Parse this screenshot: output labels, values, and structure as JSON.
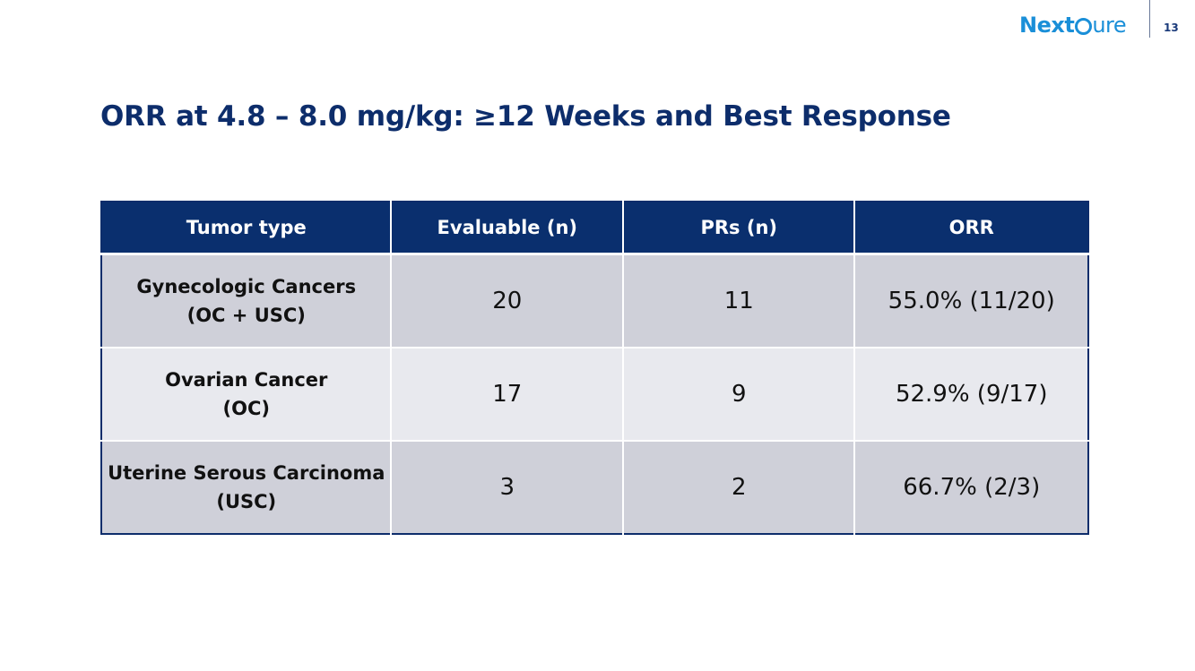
{
  "header": {
    "logo_next": "Next",
    "logo_cure": "ure",
    "page_number": "13"
  },
  "title": "ORR at 4.8 – 8.0 mg/kg: ≥12 Weeks and Best Response",
  "table": {
    "columns": [
      "Tumor type",
      "Evaluable (n)",
      "PRs (n)",
      "ORR"
    ],
    "rows": [
      {
        "tumor_line1": "Gynecologic Cancers",
        "tumor_line2": "(OC + USC)",
        "evaluable": "20",
        "prs": "11",
        "orr": "55.0% (11/20)"
      },
      {
        "tumor_line1": "Ovarian Cancer",
        "tumor_line2": "(OC)",
        "evaluable": "17",
        "prs": "9",
        "orr": "52.9% (9/17)"
      },
      {
        "tumor_line1": "Uterine Serous Carcinoma",
        "tumor_line2": "(USC)",
        "evaluable": "3",
        "prs": "2",
        "orr": "66.7% (2/3)"
      }
    ]
  },
  "colors": {
    "title": "#0d2d6b",
    "header_bg": "#0a2f6e",
    "row_dark": "#cfd0d9",
    "row_light": "#e8e9ee",
    "logo": "#1a8fd8"
  }
}
